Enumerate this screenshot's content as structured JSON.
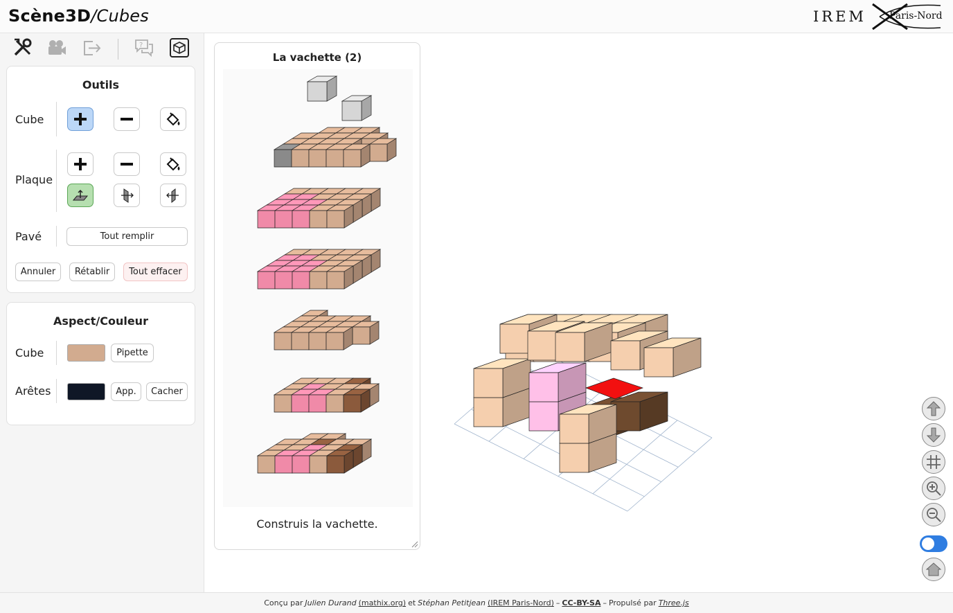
{
  "header": {
    "title_main": "Scène3D",
    "title_sep": "/",
    "title_sub": "Cubes",
    "logo_left": "IREM",
    "logo_right": "Paris-Nord"
  },
  "toolbar": {
    "icons": [
      "tools-icon",
      "camera-icon",
      "export-icon",
      "help-chat-icon",
      "cube-box-icon"
    ]
  },
  "tools_panel": {
    "title": "Outils",
    "cube_label": "Cube",
    "plaque_label": "Plaque",
    "pave_label": "Pavé",
    "fill_all": "Tout remplir",
    "undo": "Annuler",
    "redo": "Rétablir",
    "clear_all": "Tout effacer"
  },
  "aspect_panel": {
    "title": "Aspect/Couleur",
    "cube_label": "Cube",
    "cube_color": "#d2ab8f",
    "pipette": "Pipette",
    "edges_label": "Arêtes",
    "edges_color": "#0f1726",
    "apply": "App.",
    "hide": "Cacher"
  },
  "activity": {
    "title": "La vachette (2)",
    "caption": "Construis la vachette."
  },
  "colors": {
    "accent": "#2f7de1",
    "cube_tan": "#f5cfae",
    "cube_pink": "#ffc0e8",
    "cube_red": "#f21010",
    "cube_brown": "#6e4a2e"
  },
  "footer": {
    "t1": "Conçu par",
    "author1": "Julien Durand",
    "link1": "(mathix.org)",
    "t2": "et",
    "author2": "Stéphan Petitjean",
    "link2": "(IREM Paris-Nord)",
    "dash1": "–",
    "license": "CC-BY-SA",
    "dash2": "–",
    "t3": "Propulsé par",
    "engine": "Three.js"
  }
}
